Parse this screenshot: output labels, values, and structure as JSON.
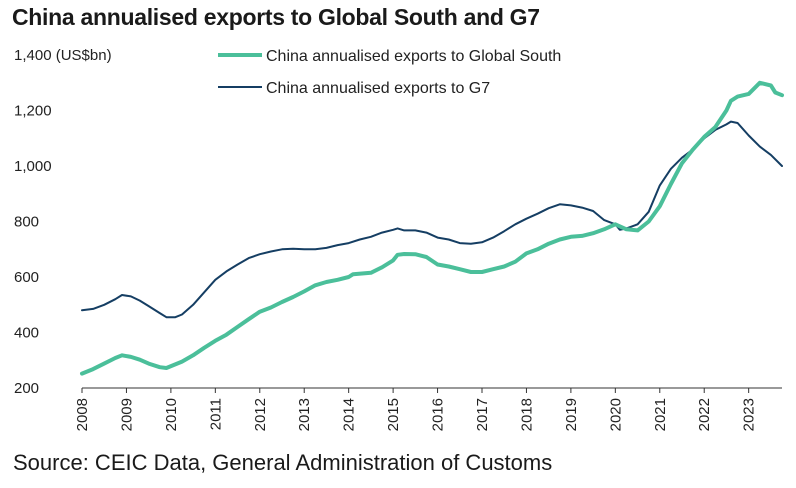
{
  "chart_data": {
    "type": "line",
    "title": "China annualised exports to Global South and G7",
    "ylabel": "1,400 (US$bn)",
    "ylim": [
      200,
      1400
    ],
    "yticks": [
      "1,400 (US$bn)",
      "1,200",
      "1,000",
      "800",
      "600",
      "400",
      "200"
    ],
    "ytick_values": [
      1400,
      1200,
      1000,
      800,
      600,
      400,
      200
    ],
    "xlim": [
      2008,
      2023.75
    ],
    "xticks": [
      "2008",
      "2009",
      "2010",
      "2011",
      "2012",
      "2013",
      "2014",
      "2015",
      "2016",
      "2017",
      "2018",
      "2019",
      "2020",
      "2021",
      "2022",
      "2023"
    ],
    "grid": false,
    "legend_position": "top",
    "series": [
      {
        "name": "China annualised exports to Global South",
        "color": "#4bbf9a",
        "x": [
          2008.0,
          2008.25,
          2008.5,
          2008.75,
          2008.9,
          2009.1,
          2009.3,
          2009.5,
          2009.75,
          2009.9,
          2010.25,
          2010.5,
          2010.75,
          2011.0,
          2011.25,
          2011.5,
          2011.75,
          2012.0,
          2012.25,
          2012.5,
          2012.75,
          2013.0,
          2013.25,
          2013.5,
          2013.75,
          2014.0,
          2014.1,
          2014.5,
          2014.75,
          2015.0,
          2015.1,
          2015.25,
          2015.5,
          2015.75,
          2016.0,
          2016.25,
          2016.5,
          2016.75,
          2017.0,
          2017.25,
          2017.5,
          2017.75,
          2018.0,
          2018.25,
          2018.5,
          2018.75,
          2019.0,
          2019.25,
          2019.5,
          2019.75,
          2020.0,
          2020.25,
          2020.5,
          2020.75,
          2021.0,
          2021.25,
          2021.5,
          2021.75,
          2022.0,
          2022.25,
          2022.5,
          2022.6,
          2022.75,
          2023.0,
          2023.25,
          2023.5,
          2023.6,
          2023.75
        ],
        "values": [
          252,
          268,
          288,
          308,
          318,
          312,
          302,
          288,
          275,
          272,
          295,
          318,
          345,
          370,
          392,
          420,
          448,
          475,
          490,
          510,
          528,
          548,
          570,
          582,
          590,
          600,
          610,
          615,
          635,
          660,
          680,
          683,
          682,
          672,
          645,
          638,
          628,
          618,
          618,
          628,
          638,
          655,
          685,
          700,
          720,
          735,
          745,
          748,
          758,
          772,
          790,
          772,
          768,
          800,
          855,
          935,
          1010,
          1060,
          1105,
          1140,
          1200,
          1235,
          1250,
          1260,
          1300,
          1290,
          1265,
          1255
        ]
      },
      {
        "name": "China annualised exports to G7",
        "color": "#153e63",
        "x": [
          2008.0,
          2008.25,
          2008.5,
          2008.75,
          2008.9,
          2009.1,
          2009.3,
          2009.5,
          2009.75,
          2009.9,
          2010.1,
          2010.25,
          2010.5,
          2010.75,
          2011.0,
          2011.25,
          2011.5,
          2011.75,
          2012.0,
          2012.25,
          2012.5,
          2012.75,
          2013.0,
          2013.25,
          2013.5,
          2013.75,
          2014.0,
          2014.25,
          2014.5,
          2014.75,
          2015.0,
          2015.1,
          2015.25,
          2015.5,
          2015.75,
          2016.0,
          2016.25,
          2016.5,
          2016.75,
          2017.0,
          2017.25,
          2017.5,
          2017.75,
          2018.0,
          2018.25,
          2018.5,
          2018.75,
          2019.0,
          2019.25,
          2019.5,
          2019.75,
          2020.0,
          2020.1,
          2020.25,
          2020.5,
          2020.75,
          2021.0,
          2021.25,
          2021.5,
          2021.75,
          2022.0,
          2022.25,
          2022.5,
          2022.6,
          2022.75,
          2023.0,
          2023.25,
          2023.5,
          2023.75
        ],
        "values": [
          480,
          485,
          500,
          520,
          535,
          530,
          515,
          495,
          470,
          455,
          455,
          465,
          500,
          545,
          590,
          620,
          645,
          668,
          682,
          692,
          700,
          702,
          700,
          700,
          705,
          715,
          722,
          735,
          745,
          760,
          770,
          775,
          768,
          768,
          760,
          742,
          735,
          722,
          720,
          725,
          742,
          765,
          790,
          810,
          828,
          848,
          862,
          858,
          850,
          838,
          805,
          790,
          770,
          775,
          790,
          835,
          930,
          990,
          1030,
          1060,
          1100,
          1130,
          1150,
          1160,
          1155,
          1110,
          1070,
          1040,
          1000
        ]
      }
    ]
  },
  "source": "Source: CEIC Data, General Administration of Customs"
}
